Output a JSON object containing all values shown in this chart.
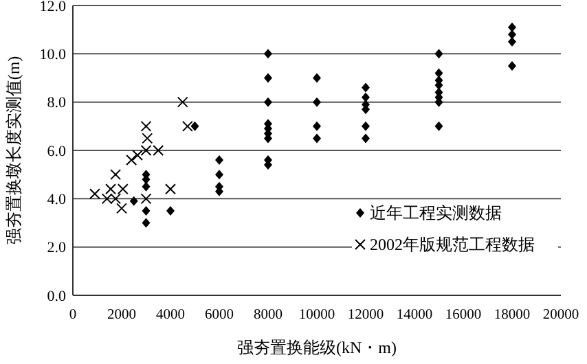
{
  "chart_data": {
    "type": "scatter",
    "xlabel": "强夯置换能级(kN・m)",
    "ylabel": "强夯置换墩长度实测值(m)",
    "xlim": [
      0,
      20000
    ],
    "xticks": [
      0,
      2000,
      4000,
      6000,
      8000,
      10000,
      12000,
      14000,
      16000,
      18000,
      20000
    ],
    "ylim": [
      0,
      12
    ],
    "yticks": [
      {
        "value": 0,
        "label": "0.0"
      },
      {
        "value": 2,
        "label": "2.0"
      },
      {
        "value": 4,
        "label": "4.0"
      },
      {
        "value": 6,
        "label": "6.0"
      },
      {
        "value": 8,
        "label": "8.0"
      },
      {
        "value": 10,
        "label": "10.0"
      },
      {
        "value": 12,
        "label": "12.0"
      }
    ],
    "grid": "y",
    "legend": "bottom right",
    "series": [
      {
        "name": "近年工程实测数据",
        "color": "#000000",
        "marker": "diamond",
        "x": [
          2500,
          3000,
          3000,
          3000,
          3000,
          3000,
          4000,
          5000,
          6000,
          6000,
          6000,
          6000,
          8000,
          8000,
          8000,
          8000,
          8000,
          8000,
          8000,
          8000,
          8000,
          10000,
          10000,
          10000,
          10000,
          12000,
          12000,
          12000,
          12000,
          12000,
          12000,
          15000,
          15000,
          15000,
          15000,
          15000,
          15000,
          15000,
          15000,
          18000,
          18000,
          18000,
          18000
        ],
        "values": [
          3.9,
          5.0,
          4.8,
          4.5,
          3.5,
          3.0,
          3.5,
          7.0,
          5.6,
          5.0,
          4.5,
          4.3,
          10.0,
          9.0,
          8.0,
          7.1,
          6.9,
          6.7,
          6.5,
          5.6,
          5.4,
          9.0,
          8.0,
          7.0,
          6.5,
          8.6,
          8.2,
          7.9,
          7.7,
          7.0,
          6.5,
          10.0,
          9.2,
          8.9,
          8.7,
          8.4,
          8.2,
          8.0,
          7.0,
          11.1,
          10.8,
          10.5,
          9.5
        ]
      },
      {
        "name": "2002年版规范工程数据",
        "color": "#000000",
        "marker": "cross",
        "x": [
          900,
          1400,
          1550,
          1750,
          1750,
          2000,
          2050,
          2400,
          2650,
          3000,
          3050,
          3000,
          3000,
          3500,
          4000,
          4500,
          4700
        ],
        "values": [
          4.2,
          4.0,
          4.4,
          5.0,
          4.0,
          3.6,
          4.4,
          5.6,
          5.8,
          7.0,
          6.5,
          6.0,
          4.0,
          6.0,
          4.4,
          8.0,
          7.0
        ]
      }
    ]
  }
}
